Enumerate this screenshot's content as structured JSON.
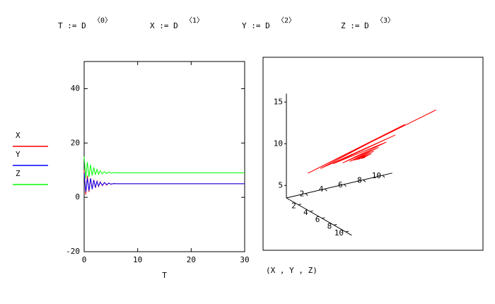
{
  "formulas": [
    {
      "lhs": "T := D",
      "sup": "〈0〉"
    },
    {
      "lhs": "X := D",
      "sup": "〈1〉"
    },
    {
      "lhs": "Y := D",
      "sup": "〈2〉"
    },
    {
      "lhs": "Z := D",
      "sup": "〈3〉"
    }
  ],
  "chart_data": [
    {
      "type": "line",
      "xlabel": "T",
      "x": [
        0,
        0.3,
        0.6,
        0.9,
        1.2,
        1.5,
        1.8,
        2.1,
        2.4,
        2.7,
        3.0,
        3.4,
        3.8,
        4.2,
        4.6,
        5.0,
        5.5,
        6,
        6.5,
        7,
        8,
        10,
        30
      ],
      "series": [
        {
          "name": "X",
          "color": "#ff0000",
          "values": [
            10,
            1,
            8,
            2,
            7,
            3,
            6.5,
            3.5,
            6,
            4,
            5.7,
            4.3,
            5.5,
            4.5,
            5.3,
            4.8,
            5.1,
            5,
            5,
            5,
            5,
            5,
            5
          ]
        },
        {
          "name": "Y",
          "color": "#0000ff",
          "values": [
            9,
            2,
            7,
            2.5,
            7,
            3,
            6.3,
            3.8,
            5.8,
            4.2,
            5.5,
            4.5,
            5.4,
            4.7,
            5.2,
            4.9,
            5.05,
            5,
            5,
            5,
            5,
            5,
            5
          ]
        },
        {
          "name": "Z",
          "color": "#00ff00",
          "values": [
            15,
            7,
            13,
            7.5,
            12,
            8,
            11,
            8.3,
            10.3,
            8.5,
            9.8,
            8.7,
            9.5,
            8.8,
            9.3,
            8.9,
            9.1,
            9,
            9.05,
            9,
            9,
            9,
            9
          ]
        }
      ],
      "xlim": [
        0,
        30
      ],
      "xticks": [
        0,
        10,
        20,
        30
      ],
      "ylim": [
        -20,
        50
      ],
      "yticks": [
        -20,
        0,
        20,
        40
      ],
      "legend": "left"
    },
    {
      "type": "line3d",
      "label": "(X , Y , Z)",
      "color": "#ff0000",
      "xlim": [
        0,
        11
      ],
      "xticks": [
        2,
        4,
        6,
        8,
        10
      ],
      "ylim": [
        0,
        11
      ],
      "yticks": [
        2,
        4,
        6,
        8,
        10
      ],
      "zlim": [
        3.5,
        16
      ],
      "zticks": [
        5,
        10,
        15
      ]
    }
  ]
}
